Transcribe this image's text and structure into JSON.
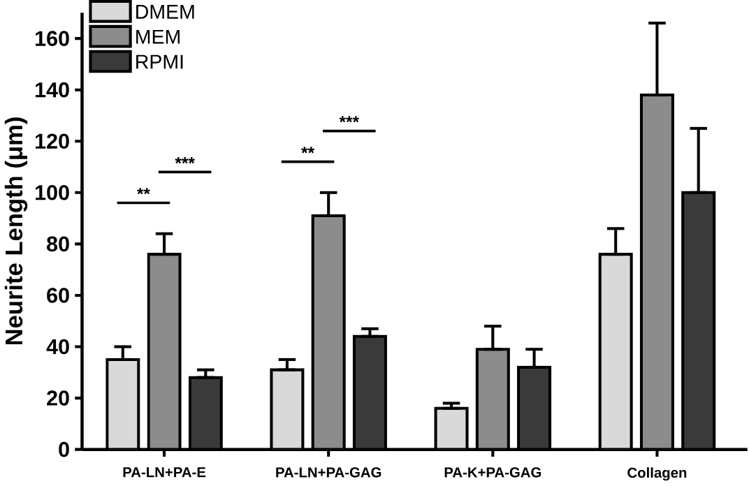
{
  "chart_data": {
    "type": "bar",
    "ylabel": "Neurite Length (μm)",
    "categories": [
      "PA-LN+PA-E",
      "PA-LN+PA-GAG",
      "PA-K+PA-GAG",
      "Collagen"
    ],
    "series": [
      {
        "name": "DMEM",
        "color": "#d9d9d9",
        "values": [
          35,
          31,
          16,
          76
        ],
        "errors": [
          [
            35,
            40
          ],
          [
            31,
            35
          ],
          [
            16,
            18
          ],
          [
            76,
            86
          ]
        ]
      },
      {
        "name": "MEM",
        "color": "#8c8c8c",
        "values": [
          76,
          91,
          39,
          138
        ],
        "errors": [
          [
            76,
            84
          ],
          [
            91,
            100
          ],
          [
            39,
            48
          ],
          [
            138,
            166
          ]
        ]
      },
      {
        "name": "RPMI",
        "color": "#3a3a3a",
        "values": [
          28,
          44,
          32,
          100
        ],
        "errors": [
          [
            28,
            31
          ],
          [
            44,
            47
          ],
          [
            32,
            39
          ],
          [
            100,
            125
          ]
        ]
      }
    ],
    "ylim": [
      0,
      170
    ],
    "yticks": [
      0,
      20,
      40,
      60,
      80,
      100,
      120,
      140,
      160
    ],
    "legend": "top left",
    "annotations": [
      "**",
      "***",
      "**",
      "***"
    ]
  }
}
